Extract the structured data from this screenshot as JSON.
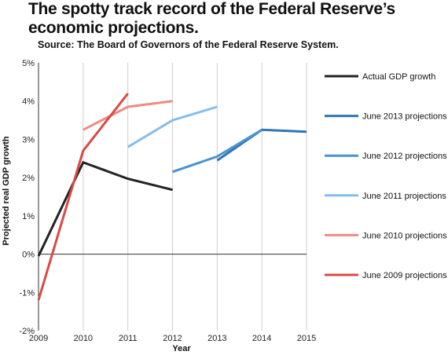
{
  "chart_data": {
    "type": "line",
    "title": "The spotty track record of the Federal Reserve’s economic projections.",
    "subtitle": "Source: The Board of Governors of the Federal Reserve System.",
    "xlabel": "Year",
    "ylabel": "Projected real GDP growth",
    "x_ticks": [
      "2009",
      "2010",
      "2011",
      "2012",
      "2013",
      "2014",
      "2015"
    ],
    "y_ticks": [
      "-2%",
      "-1%",
      "0%",
      "1%",
      "2%",
      "3%",
      "4%",
      "5%"
    ],
    "xlim": [
      2009,
      2015
    ],
    "ylim": [
      -2,
      5
    ],
    "grid": "vertical",
    "legend_position": "right",
    "series": [
      {
        "name": "Actual GDP growth",
        "color": "#222222",
        "points": [
          [
            2009,
            -0.05
          ],
          [
            2010,
            2.4
          ],
          [
            2011,
            1.97
          ],
          [
            2012,
            1.68
          ]
        ]
      },
      {
        "name": "June 2013 projections",
        "color": "#2f74b5",
        "points": [
          [
            2013,
            2.45
          ],
          [
            2014,
            3.25
          ],
          [
            2015,
            3.2
          ]
        ]
      },
      {
        "name": "June 2012 projections",
        "color": "#4a93d0",
        "points": [
          [
            2012,
            2.15
          ],
          [
            2013,
            2.55
          ],
          [
            2014,
            3.25
          ]
        ]
      },
      {
        "name": "June 2011 projections",
        "color": "#86bde9",
        "points": [
          [
            2011,
            2.8
          ],
          [
            2012,
            3.5
          ],
          [
            2013,
            3.85
          ]
        ]
      },
      {
        "name": "June 2010 projections",
        "color": "#f08a84",
        "points": [
          [
            2010,
            3.25
          ],
          [
            2011,
            3.85
          ],
          [
            2012,
            4.0
          ]
        ]
      },
      {
        "name": "June 2009 projections",
        "color": "#d94a44",
        "points": [
          [
            2009,
            -1.2
          ],
          [
            2010,
            2.7
          ],
          [
            2011,
            4.2
          ]
        ]
      }
    ]
  }
}
